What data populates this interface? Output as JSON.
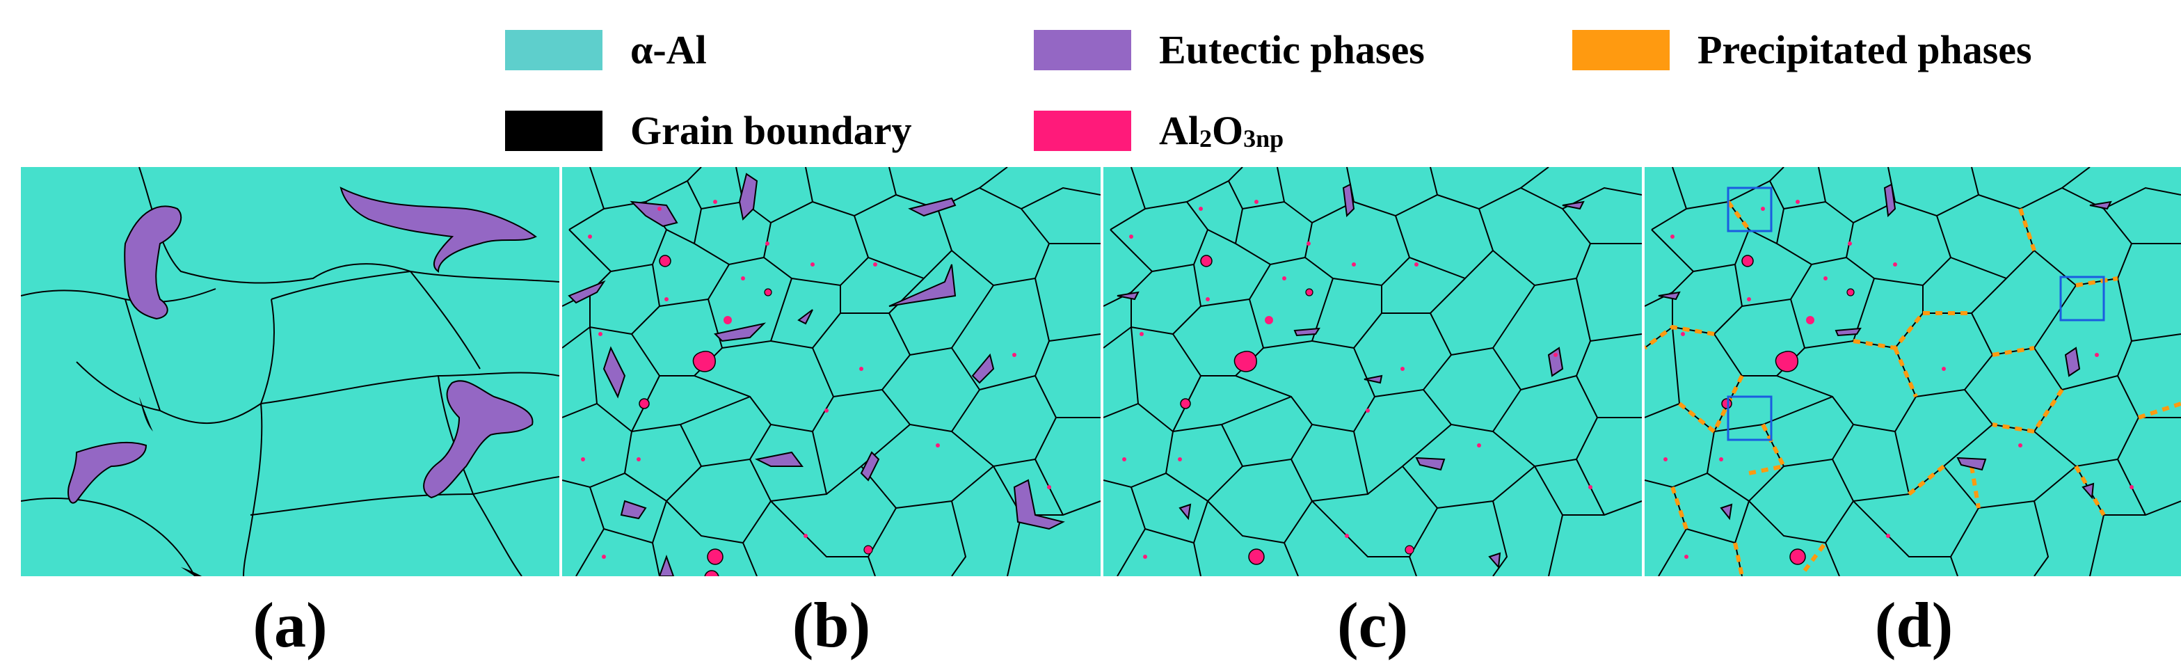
{
  "legend": {
    "items": [
      {
        "label": "α-Al",
        "color": "#5ecfcc"
      },
      {
        "label": "Eutectic phases",
        "color": "#9467c4"
      },
      {
        "label": "Precipitated phases",
        "color": "#ff9a10"
      },
      {
        "label": "Grain boundary",
        "color": "#000000"
      },
      {
        "label_main": "Al",
        "label_sub1": "2",
        "label_mid": "O",
        "label_sub2": "3np",
        "color": "#ff1a7a"
      }
    ]
  },
  "panels": [
    {
      "label": "(a)"
    },
    {
      "label": "(b)"
    },
    {
      "label": "(c)"
    },
    {
      "label": "(d)"
    }
  ],
  "colors": {
    "matrix": "#45e0cc",
    "eutectic": "#9467c4",
    "precipitate": "#ff9a10",
    "boundary": "#000000",
    "particle": "#ff1a7a",
    "box": "#1a5ce0"
  }
}
